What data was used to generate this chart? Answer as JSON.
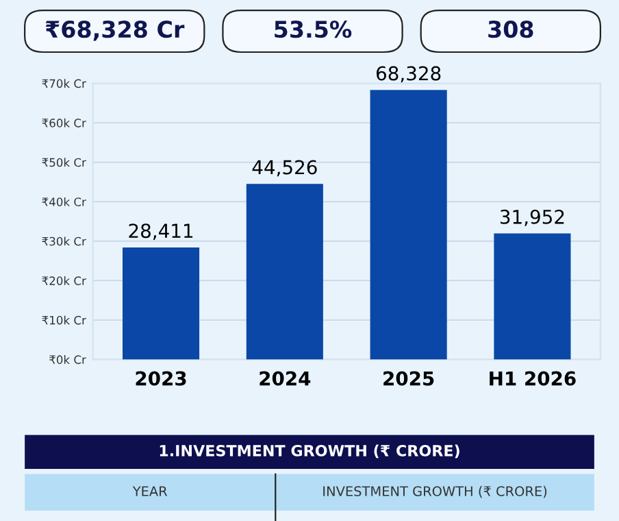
{
  "chart_data": {
    "type": "bar",
    "categories": [
      "2023",
      "2024",
      "2025",
      "H1 2026"
    ],
    "values": [
      28411,
      44526,
      68328,
      31952
    ],
    "value_labels": [
      "28,411",
      "44,526",
      "68,328",
      "31,952"
    ],
    "color": "#0b47a6",
    "ylim": [
      0,
      70000
    ],
    "yticks": [
      {
        "value": 0,
        "label": "₹0k Cr"
      },
      {
        "value": 10000,
        "label": "₹10k Cr"
      },
      {
        "value": 20000,
        "label": "₹20k Cr"
      },
      {
        "value": 30000,
        "label": "₹30k Cr"
      },
      {
        "value": 40000,
        "label": "₹40k Cr"
      },
      {
        "value": 50000,
        "label": "₹50k Cr"
      },
      {
        "value": 60000,
        "label": "₹60k Cr"
      },
      {
        "value": 70000,
        "label": "₹70k Cr"
      }
    ],
    "grid": "y",
    "annotations": [
      "₹68,328 Cr",
      "53.5%",
      "308",
      "1.INVESTMENT GROWTH (₹ CRORE)",
      "YEAR",
      "INVESTMENT GROWTH (₹ CRORE)"
    ]
  }
}
